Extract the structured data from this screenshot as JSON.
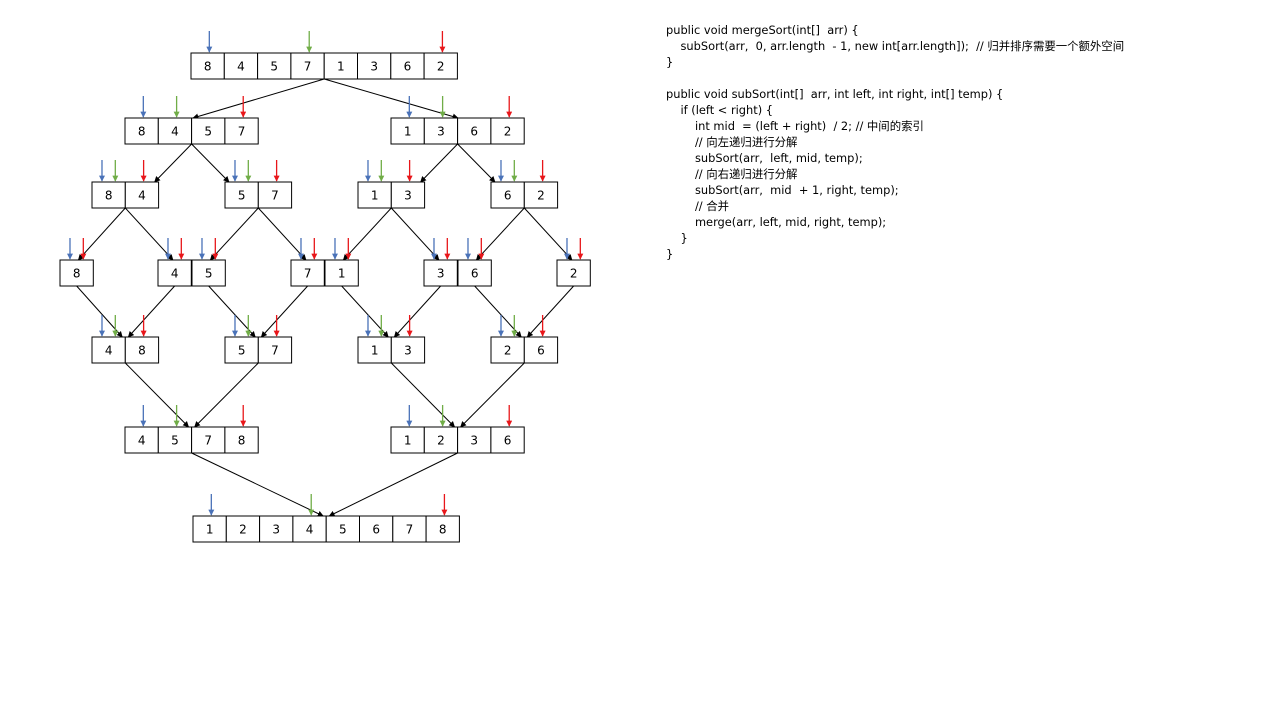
{
  "colors": {
    "left_pointer": "#4a72b8",
    "mid_pointer": "#70ad47",
    "right_pointer": "#e8161a",
    "box_border": "#000000",
    "text": "#000000",
    "background": "#ffffff"
  },
  "diagram": {
    "arrays": [
      {
        "id": "L0",
        "level": 0,
        "values": [
          "8",
          "4",
          "5",
          "7",
          "1",
          "3",
          "6",
          "2"
        ],
        "pointers": {
          "left": 0,
          "mid": 3,
          "right": 7
        }
      },
      {
        "id": "L1a",
        "level": 1,
        "values": [
          "8",
          "4",
          "5",
          "7"
        ],
        "pointers": {
          "left": 0,
          "mid": 1,
          "right": 3
        }
      },
      {
        "id": "L1b",
        "level": 1,
        "values": [
          "1",
          "3",
          "6",
          "2"
        ],
        "pointers": {
          "left": 0,
          "mid": 1,
          "right": 3
        }
      },
      {
        "id": "L2a",
        "level": 2,
        "values": [
          "8",
          "4"
        ],
        "pointers": {
          "left": 0,
          "mid": 0,
          "right": 1
        }
      },
      {
        "id": "L2b",
        "level": 2,
        "values": [
          "5",
          "7"
        ],
        "pointers": {
          "left": 0,
          "mid": 0,
          "right": 1
        }
      },
      {
        "id": "L2c",
        "level": 2,
        "values": [
          "1",
          "3"
        ],
        "pointers": {
          "left": 0,
          "mid": 0,
          "right": 1
        }
      },
      {
        "id": "L2d",
        "level": 2,
        "values": [
          "6",
          "2"
        ],
        "pointers": {
          "left": 0,
          "mid": 0,
          "right": 1
        }
      },
      {
        "id": "L3a",
        "level": 3,
        "values": [
          "8"
        ],
        "pointers": {
          "left": 0,
          "right": 0
        }
      },
      {
        "id": "L3b",
        "level": 3,
        "values": [
          "4"
        ],
        "pointers": {
          "left": 0,
          "right": 0
        }
      },
      {
        "id": "L3c",
        "level": 3,
        "values": [
          "5"
        ],
        "pointers": {
          "left": 0,
          "right": 0
        }
      },
      {
        "id": "L3d",
        "level": 3,
        "values": [
          "7"
        ],
        "pointers": {
          "left": 0,
          "right": 0
        }
      },
      {
        "id": "L3e",
        "level": 3,
        "values": [
          "1"
        ],
        "pointers": {
          "left": 0,
          "right": 0
        }
      },
      {
        "id": "L3f",
        "level": 3,
        "values": [
          "3"
        ],
        "pointers": {
          "left": 0,
          "right": 0
        }
      },
      {
        "id": "L3g",
        "level": 3,
        "values": [
          "6"
        ],
        "pointers": {
          "left": 0,
          "right": 0
        }
      },
      {
        "id": "L3h",
        "level": 3,
        "values": [
          "2"
        ],
        "pointers": {
          "left": 0,
          "right": 0
        }
      },
      {
        "id": "L4a",
        "level": 4,
        "values": [
          "4",
          "8"
        ],
        "pointers": {
          "left": 0,
          "mid": 0,
          "right": 1
        }
      },
      {
        "id": "L4b",
        "level": 4,
        "values": [
          "5",
          "7"
        ],
        "pointers": {
          "left": 0,
          "mid": 0,
          "right": 1
        }
      },
      {
        "id": "L4c",
        "level": 4,
        "values": [
          "1",
          "3"
        ],
        "pointers": {
          "left": 0,
          "mid": 0,
          "right": 1
        }
      },
      {
        "id": "L4d",
        "level": 4,
        "values": [
          "2",
          "6"
        ],
        "pointers": {
          "left": 0,
          "mid": 0,
          "right": 1
        }
      },
      {
        "id": "L5a",
        "level": 5,
        "values": [
          "4",
          "5",
          "7",
          "8"
        ],
        "pointers": {
          "left": 0,
          "mid": 1,
          "right": 3
        }
      },
      {
        "id": "L5b",
        "level": 5,
        "values": [
          "1",
          "2",
          "3",
          "6"
        ],
        "pointers": {
          "left": 0,
          "mid": 1,
          "right": 3
        }
      },
      {
        "id": "L6",
        "level": 6,
        "values": [
          "1",
          "2",
          "3",
          "4",
          "5",
          "6",
          "7",
          "8"
        ],
        "pointers": {
          "left": 0,
          "mid": 3,
          "right": 7
        }
      }
    ],
    "edges": [
      {
        "from": "L0",
        "to": "L1a"
      },
      {
        "from": "L0",
        "to": "L1b"
      },
      {
        "from": "L1a",
        "to": "L2a"
      },
      {
        "from": "L1a",
        "to": "L2b"
      },
      {
        "from": "L1b",
        "to": "L2c"
      },
      {
        "from": "L1b",
        "to": "L2d"
      },
      {
        "from": "L2a",
        "to": "L3a"
      },
      {
        "from": "L2a",
        "to": "L3b"
      },
      {
        "from": "L2b",
        "to": "L3c"
      },
      {
        "from": "L2b",
        "to": "L3d"
      },
      {
        "from": "L2c",
        "to": "L3e"
      },
      {
        "from": "L2c",
        "to": "L3f"
      },
      {
        "from": "L2d",
        "to": "L3g"
      },
      {
        "from": "L2d",
        "to": "L3h"
      },
      {
        "from": "L3a",
        "to": "L4a"
      },
      {
        "from": "L3b",
        "to": "L4a"
      },
      {
        "from": "L3c",
        "to": "L4b"
      },
      {
        "from": "L3d",
        "to": "L4b"
      },
      {
        "from": "L3e",
        "to": "L4c"
      },
      {
        "from": "L3f",
        "to": "L4c"
      },
      {
        "from": "L3g",
        "to": "L4d"
      },
      {
        "from": "L3h",
        "to": "L4d"
      },
      {
        "from": "L4a",
        "to": "L5a"
      },
      {
        "from": "L4b",
        "to": "L5a"
      },
      {
        "from": "L4c",
        "to": "L5b"
      },
      {
        "from": "L4d",
        "to": "L5b"
      },
      {
        "from": "L5a",
        "to": "L6"
      },
      {
        "from": "L5b",
        "to": "L6"
      }
    ]
  },
  "code": {
    "lines": [
      "public void mergeSort(int[]  arr) {",
      "    subSort(arr,  0, arr.length  - 1, new int[arr.length]);  // 归并排序需要一个额外空间",
      "}",
      "",
      "public void subSort(int[]  arr, int left, int right, int[] temp) {",
      "    if (left < right) {",
      "        int mid  = (left + right)  / 2; // 中间的索引",
      "        // 向左递归进行分解",
      "        subSort(arr,  left, mid, temp);",
      "        // 向右递归进行分解",
      "        subSort(arr,  mid  + 1, right, temp);",
      "        // 合并",
      "        merge(arr, left, mid, right, temp);",
      "    }",
      "}"
    ]
  }
}
